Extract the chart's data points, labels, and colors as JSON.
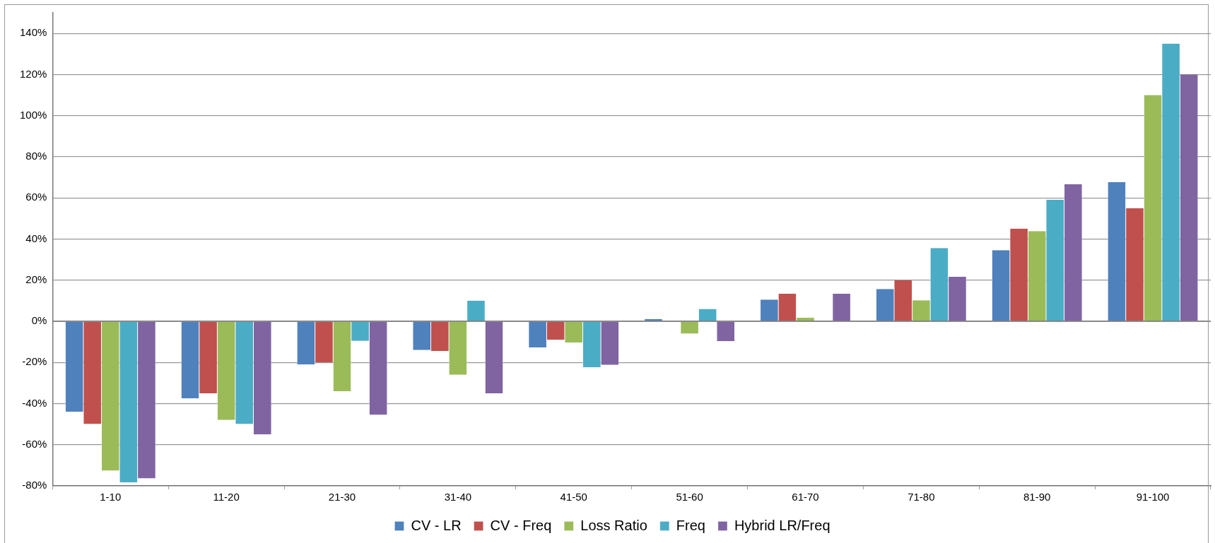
{
  "chart_data": {
    "type": "bar",
    "categories": [
      "1-10",
      "11-20",
      "21-30",
      "31-40",
      "41-50",
      "51-60",
      "61-70",
      "71-80",
      "81-90",
      "91-100"
    ],
    "series": [
      {
        "name": "CV - LR",
        "color": "#4f81bd",
        "values": [
          -44,
          -37.5,
          -21,
          -14,
          -12.7,
          1,
          10.5,
          15.7,
          34.6,
          67.7
        ]
      },
      {
        "name": "CV - Freq",
        "color": "#c0504d",
        "values": [
          -50,
          -35,
          -20,
          -14.5,
          -9,
          0,
          13.4,
          20,
          45,
          55
        ]
      },
      {
        "name": "Loss Ratio",
        "color": "#9bbb59",
        "values": [
          -72.6,
          -48,
          -34,
          -26,
          -10.4,
          -6,
          1.7,
          10.2,
          43.8,
          110
        ]
      },
      {
        "name": "Freq",
        "color": "#4bacc6",
        "values": [
          -78.4,
          -50,
          -9.5,
          10,
          -22.4,
          6,
          0,
          35.6,
          59,
          135
        ]
      },
      {
        "name": "Hybrid LR/Freq",
        "color": "#8064a2",
        "values": [
          -76.4,
          -55,
          -45.5,
          -35,
          -21.2,
          -9.7,
          13.4,
          21.6,
          66.7,
          120
        ]
      }
    ],
    "ylim": [
      -80,
      150
    ],
    "yticks": [
      {
        "value": -80,
        "label": "-80%"
      },
      {
        "value": -60,
        "label": "-60%"
      },
      {
        "value": -40,
        "label": "-40%"
      },
      {
        "value": -20,
        "label": "-20%"
      },
      {
        "value": 0,
        "label": "0%"
      },
      {
        "value": 20,
        "label": "20%"
      },
      {
        "value": 40,
        "label": "40%"
      },
      {
        "value": 60,
        "label": "60%"
      },
      {
        "value": 80,
        "label": "80%"
      },
      {
        "value": 100,
        "label": "100%"
      },
      {
        "value": 120,
        "label": "120%"
      },
      {
        "value": 140,
        "label": "140%"
      }
    ],
    "grid": "y",
    "legend": "bottom"
  }
}
